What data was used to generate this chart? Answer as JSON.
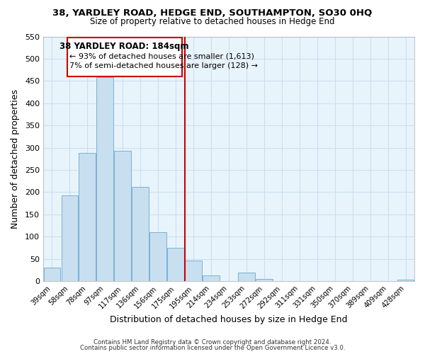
{
  "title_line1": "38, YARDLEY ROAD, HEDGE END, SOUTHAMPTON, SO30 0HQ",
  "title_line2": "Size of property relative to detached houses in Hedge End",
  "xlabel": "Distribution of detached houses by size in Hedge End",
  "ylabel": "Number of detached properties",
  "bar_labels": [
    "39sqm",
    "58sqm",
    "78sqm",
    "97sqm",
    "117sqm",
    "136sqm",
    "156sqm",
    "175sqm",
    "195sqm",
    "214sqm",
    "234sqm",
    "253sqm",
    "272sqm",
    "292sqm",
    "311sqm",
    "331sqm",
    "350sqm",
    "370sqm",
    "389sqm",
    "409sqm",
    "428sqm"
  ],
  "bar_values": [
    30,
    192,
    288,
    458,
    293,
    212,
    110,
    75,
    47,
    13,
    0,
    20,
    5,
    0,
    0,
    0,
    0,
    0,
    0,
    0,
    3
  ],
  "bar_color": "#c8dff0",
  "bar_edge_color": "#7ab0d4",
  "vline_color": "#cc0000",
  "annotation_title": "38 YARDLEY ROAD: 184sqm",
  "annotation_line1": "← 93% of detached houses are smaller (1,613)",
  "annotation_line2": "7% of semi-detached houses are larger (128) →",
  "annotation_box_color": "#ffffff",
  "annotation_box_edge_color": "#cc0000",
  "ylim": [
    0,
    550
  ],
  "yticks": [
    0,
    50,
    100,
    150,
    200,
    250,
    300,
    350,
    400,
    450,
    500,
    550
  ],
  "footer_line1": "Contains HM Land Registry data © Crown copyright and database right 2024.",
  "footer_line2": "Contains public sector information licensed under the Open Government Licence v3.0.",
  "bg_color": "#ffffff",
  "grid_color": "#ccdff0"
}
